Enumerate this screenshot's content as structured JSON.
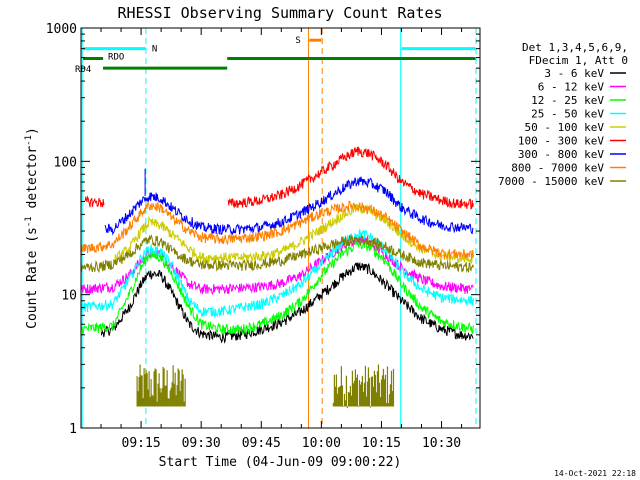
{
  "chart_data": {
    "type": "line",
    "title": "RHESSI Observing Summary Count Rates",
    "xlabel": "Start Time (04-Jun-09 09:00:22)",
    "ylabel_main": "Count Rate (s",
    "ylabel_sup1": "-1",
    "ylabel_mid": " detector",
    "ylabel_sup2": "-1",
    "ylabel_end": ")",
    "ylog": true,
    "ylim": [
      1,
      1000
    ],
    "xlim_min": [
      0,
      99.6
    ],
    "x_ticks": [
      {
        "min": 15,
        "label": "09:15"
      },
      {
        "min": 30,
        "label": "09:30"
      },
      {
        "min": 45,
        "label": "09:45"
      },
      {
        "min": 60,
        "label": "10:00"
      },
      {
        "min": 75,
        "label": "10:15"
      },
      {
        "min": 90,
        "label": "10:30"
      }
    ],
    "y_ticks": [
      {
        "value": 1,
        "label": "1"
      },
      {
        "value": 10,
        "label": "10"
      },
      {
        "value": 100,
        "label": "100"
      },
      {
        "value": 1000,
        "label": "1000"
      }
    ],
    "legend_header": [
      "Det 1,3,4,5,6,9,",
      "FDecim 1, Att 0"
    ],
    "series": [
      {
        "name": "3 - 6 keV",
        "color": "#000000",
        "values_min": [
          [
            5,
            5.2
          ],
          [
            8,
            5.5
          ],
          [
            12,
            8
          ],
          [
            15,
            12
          ],
          [
            17,
            14.5
          ],
          [
            20,
            14
          ],
          [
            23,
            10
          ],
          [
            27,
            6
          ],
          [
            30,
            5.1
          ],
          [
            35,
            4.8
          ],
          [
            40,
            5
          ],
          [
            45,
            5.5
          ],
          [
            50,
            6.2
          ],
          [
            55,
            7.5
          ],
          [
            60,
            10
          ],
          [
            65,
            13.5
          ],
          [
            69,
            16.5
          ],
          [
            72,
            15.5
          ],
          [
            76,
            12
          ],
          [
            80,
            9
          ],
          [
            85,
            6.6
          ],
          [
            90,
            5.5
          ],
          [
            95,
            5
          ],
          [
            98,
            4.9
          ]
        ]
      },
      {
        "name": "6 - 12 keV",
        "color": "#ff00ff",
        "values_min": [
          [
            0,
            11
          ],
          [
            8,
            11.5
          ],
          [
            12,
            14
          ],
          [
            15,
            18
          ],
          [
            17,
            20.5
          ],
          [
            20,
            20
          ],
          [
            23,
            16
          ],
          [
            27,
            12
          ],
          [
            30,
            11
          ],
          [
            40,
            11.2
          ],
          [
            45,
            11.5
          ],
          [
            50,
            12.2
          ],
          [
            55,
            14
          ],
          [
            60,
            18
          ],
          [
            65,
            23
          ],
          [
            69,
            26
          ],
          [
            72,
            25
          ],
          [
            76,
            20
          ],
          [
            80,
            16
          ],
          [
            85,
            13
          ],
          [
            90,
            11.6
          ],
          [
            98,
            11
          ]
        ]
      },
      {
        "name": "12 - 25 keV",
        "color": "#00ff00",
        "values_min": [
          [
            0,
            5.5
          ],
          [
            8,
            5.8
          ],
          [
            12,
            10
          ],
          [
            15,
            16
          ],
          [
            17,
            20
          ],
          [
            20,
            19
          ],
          [
            23,
            14
          ],
          [
            27,
            8
          ],
          [
            30,
            6
          ],
          [
            35,
            5.5
          ],
          [
            40,
            5.5
          ],
          [
            45,
            6
          ],
          [
            50,
            7
          ],
          [
            55,
            9
          ],
          [
            60,
            14
          ],
          [
            65,
            20
          ],
          [
            69,
            24
          ],
          [
            72,
            23
          ],
          [
            76,
            18
          ],
          [
            80,
            12
          ],
          [
            85,
            8
          ],
          [
            90,
            6.3
          ],
          [
            98,
            5.5
          ]
        ]
      },
      {
        "name": "25 - 50 keV",
        "color": "#00ffff",
        "values_min": [
          [
            0,
            8
          ],
          [
            8,
            8.5
          ],
          [
            12,
            13
          ],
          [
            15,
            19
          ],
          [
            17,
            22
          ],
          [
            20,
            21
          ],
          [
            23,
            16
          ],
          [
            27,
            9
          ],
          [
            30,
            7.5
          ],
          [
            35,
            7.5
          ],
          [
            40,
            8
          ],
          [
            45,
            8.5
          ],
          [
            50,
            9.8
          ],
          [
            55,
            12
          ],
          [
            60,
            17
          ],
          [
            65,
            24
          ],
          [
            69,
            29
          ],
          [
            72,
            27.5
          ],
          [
            76,
            22
          ],
          [
            80,
            15
          ],
          [
            85,
            11
          ],
          [
            90,
            9.5
          ],
          [
            98,
            9
          ]
        ]
      },
      {
        "name": "50 - 100 keV",
        "color": "#cccc00",
        "values_min": [
          [
            8,
            18
          ],
          [
            12,
            22
          ],
          [
            15,
            30
          ],
          [
            17,
            35
          ],
          [
            20,
            33
          ],
          [
            23,
            28
          ],
          [
            27,
            22
          ],
          [
            30,
            19
          ],
          [
            40,
            19
          ],
          [
            45,
            19.5
          ],
          [
            50,
            21
          ],
          [
            55,
            25
          ],
          [
            60,
            31
          ],
          [
            65,
            39
          ],
          [
            69,
            45
          ],
          [
            72,
            43
          ],
          [
            76,
            36
          ],
          [
            80,
            28
          ],
          [
            85,
            22
          ],
          [
            90,
            19.5
          ],
          [
            98,
            18.5
          ]
        ]
      },
      {
        "name": "100 - 300 keV",
        "color": "#ff0000",
        "values_min": [
          [
            1,
            50
          ],
          [
            6,
            49
          ],
          [
            6.2,
            null
          ],
          [
            36.5,
            null
          ],
          [
            36.7,
            48
          ],
          [
            40,
            49
          ],
          [
            45,
            51
          ],
          [
            50,
            56
          ],
          [
            55,
            67
          ],
          [
            60,
            83
          ],
          [
            65,
            104
          ],
          [
            69,
            120
          ],
          [
            72,
            115
          ],
          [
            76,
            95
          ],
          [
            80,
            70
          ],
          [
            85,
            57
          ],
          [
            90,
            51
          ],
          [
            94,
            48
          ],
          [
            98,
            48
          ]
        ]
      },
      {
        "name": "300 - 800 keV",
        "color": "#0000ff",
        "values_min": [
          [
            6,
            31
          ],
          [
            8,
            31
          ],
          [
            12,
            40
          ],
          [
            15,
            50
          ],
          [
            17,
            55
          ],
          [
            20,
            53
          ],
          [
            23,
            44
          ],
          [
            27,
            36
          ],
          [
            30,
            32
          ],
          [
            35,
            31
          ],
          [
            40,
            31
          ],
          [
            45,
            32
          ],
          [
            50,
            35
          ],
          [
            55,
            41
          ],
          [
            60,
            50
          ],
          [
            65,
            62
          ],
          [
            69,
            72
          ],
          [
            72,
            69
          ],
          [
            76,
            60
          ],
          [
            80,
            45
          ],
          [
            85,
            37
          ],
          [
            90,
            33
          ],
          [
            98,
            31.5
          ]
        ]
      },
      {
        "name": "800 - 7000 keV",
        "color": "#ff8000",
        "values_min": [
          [
            0,
            22
          ],
          [
            5,
            23
          ],
          [
            8,
            24
          ],
          [
            12,
            32
          ],
          [
            15,
            41
          ],
          [
            17,
            47
          ],
          [
            20,
            45
          ],
          [
            23,
            37
          ],
          [
            27,
            30
          ],
          [
            30,
            27
          ],
          [
            35,
            26
          ],
          [
            40,
            26.5
          ],
          [
            45,
            27.5
          ],
          [
            50,
            30
          ],
          [
            55,
            35
          ],
          [
            60,
            41
          ],
          [
            65,
            45
          ],
          [
            68,
            47
          ],
          [
            72,
            44
          ],
          [
            76,
            38
          ],
          [
            80,
            30
          ],
          [
            85,
            23
          ],
          [
            90,
            20.5
          ],
          [
            98,
            20
          ]
        ]
      },
      {
        "name": "7000 - 15000 keV",
        "color": "#808000",
        "values_min": [
          [
            0,
            16
          ],
          [
            5,
            16.3
          ],
          [
            8,
            17
          ],
          [
            12,
            20
          ],
          [
            15,
            24
          ],
          [
            17,
            26
          ],
          [
            20,
            25
          ],
          [
            23,
            21
          ],
          [
            27,
            18
          ],
          [
            30,
            16.8
          ],
          [
            40,
            16.5
          ],
          [
            45,
            17
          ],
          [
            50,
            18
          ],
          [
            55,
            20
          ],
          [
            60,
            22.5
          ],
          [
            65,
            25
          ],
          [
            69,
            26
          ],
          [
            72,
            25.5
          ],
          [
            76,
            23
          ],
          [
            80,
            20
          ],
          [
            85,
            17.5
          ],
          [
            90,
            16.5
          ],
          [
            98,
            16
          ]
        ]
      }
    ],
    "state_bars": [
      {
        "label": "N",
        "color": "#00ffff",
        "row_value": 700,
        "segments": [
          [
            0.5,
            16.2
          ],
          [
            80,
            98.5
          ]
        ]
      },
      {
        "label": "RDO",
        "color": "#008000",
        "row_value": 590,
        "segments": [
          [
            0.5,
            5.5
          ],
          [
            36.5,
            98.5
          ]
        ]
      },
      {
        "label": "RD4",
        "color": "#008000",
        "row_value": 500,
        "segments": [
          [
            5.5,
            36.5
          ]
        ]
      },
      {
        "label": "S",
        "color": "#ff8000",
        "row_value": 810,
        "segments": [
          [
            57,
            60
          ]
        ]
      }
    ],
    "vlines": [
      {
        "min": 0.3,
        "color": "#00ffff",
        "style": "solid"
      },
      {
        "min": 16.2,
        "color": "#00ffff",
        "style": "dashed"
      },
      {
        "min": 56.8,
        "color": "#ff8000",
        "style": "solid"
      },
      {
        "min": 60.2,
        "color": "#ff8000",
        "style": "dashed"
      },
      {
        "min": 79.8,
        "color": "#00ffff",
        "style": "solid"
      },
      {
        "min": 98.6,
        "color": "#00ffff",
        "style": "dashed"
      }
    ],
    "flare_bursts": [
      {
        "color": "#808000",
        "start": 14,
        "end": 26
      },
      {
        "color": "#808000",
        "start": 63,
        "end": 78
      }
    ],
    "spike": {
      "min": 16,
      "value": 88,
      "color": "#0000ff"
    },
    "timestamp": "14-Oct-2021 22:18"
  }
}
